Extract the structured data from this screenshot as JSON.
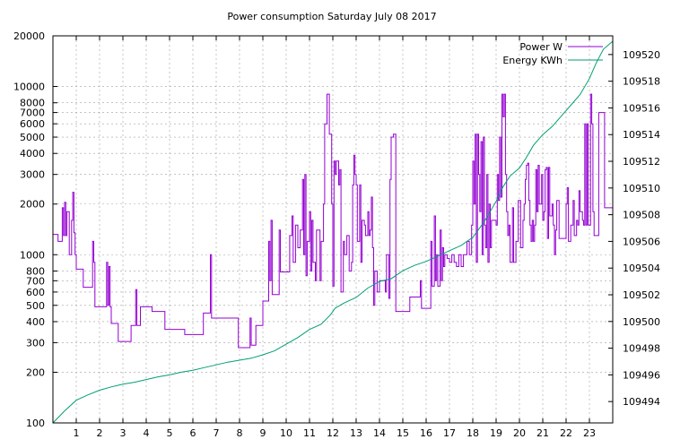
{
  "chart_data": {
    "type": "line",
    "title": "Power consumption Saturday July 08 2017",
    "xlabel": "",
    "ylabel": "",
    "y2label": "",
    "x_ticks": [
      "1",
      "2",
      "3",
      "4",
      "5",
      "6",
      "7",
      "8",
      "9",
      "10",
      "11",
      "12",
      "13",
      "14",
      "15",
      "16",
      "17",
      "18",
      "19",
      "20",
      "21",
      "22",
      "23"
    ],
    "xlim": [
      0,
      24
    ],
    "y_scale": "log",
    "ylim": [
      100,
      20000
    ],
    "y_ticks": [
      100,
      200,
      300,
      400,
      500,
      600,
      700,
      800,
      1000,
      2000,
      3000,
      4000,
      5000,
      6000,
      7000,
      8000,
      10000,
      20000
    ],
    "y2lim": [
      109492.4,
      109521.4
    ],
    "y2_ticks": [
      109494,
      109496,
      109498,
      109500,
      109502,
      109504,
      109506,
      109508,
      109510,
      109512,
      109514,
      109516,
      109518,
      109520
    ],
    "grid": true,
    "legend_position": "top-right",
    "series": [
      {
        "name": "Power W",
        "axis": "left",
        "color": "#9400d3",
        "points": [
          [
            0,
            1320
          ],
          [
            0.2,
            1320
          ],
          [
            0.22,
            1200
          ],
          [
            0.35,
            1200
          ],
          [
            0.4,
            1900
          ],
          [
            0.45,
            1300
          ],
          [
            0.5,
            2050
          ],
          [
            0.55,
            1300
          ],
          [
            0.6,
            1800
          ],
          [
            0.7,
            1000
          ],
          [
            0.8,
            1600
          ],
          [
            0.85,
            2350
          ],
          [
            0.9,
            1350
          ],
          [
            0.95,
            1000
          ],
          [
            1.0,
            820
          ],
          [
            1.25,
            820
          ],
          [
            1.3,
            640
          ],
          [
            1.65,
            640
          ],
          [
            1.7,
            1200
          ],
          [
            1.75,
            900
          ],
          [
            1.8,
            490
          ],
          [
            2.25,
            490
          ],
          [
            2.3,
            900
          ],
          [
            2.35,
            500
          ],
          [
            2.4,
            850
          ],
          [
            2.45,
            490
          ],
          [
            2.5,
            390
          ],
          [
            2.75,
            390
          ],
          [
            2.8,
            305
          ],
          [
            3.3,
            305
          ],
          [
            3.35,
            380
          ],
          [
            3.5,
            380
          ],
          [
            3.55,
            620
          ],
          [
            3.6,
            380
          ],
          [
            3.75,
            490
          ],
          [
            4.2,
            490
          ],
          [
            4.25,
            460
          ],
          [
            4.75,
            460
          ],
          [
            4.8,
            360
          ],
          [
            5.6,
            360
          ],
          [
            5.65,
            335
          ],
          [
            6.4,
            335
          ],
          [
            6.45,
            450
          ],
          [
            6.7,
            450
          ],
          [
            6.75,
            1000
          ],
          [
            6.8,
            420
          ],
          [
            7.9,
            420
          ],
          [
            7.95,
            280
          ],
          [
            8.4,
            280
          ],
          [
            8.45,
            420
          ],
          [
            8.5,
            290
          ],
          [
            8.6,
            290
          ],
          [
            8.7,
            380
          ],
          [
            8.95,
            380
          ],
          [
            9.0,
            530
          ],
          [
            9.15,
            530
          ],
          [
            9.25,
            1200
          ],
          [
            9.3,
            700
          ],
          [
            9.35,
            1600
          ],
          [
            9.4,
            580
          ],
          [
            9.6,
            580
          ],
          [
            9.7,
            1400
          ],
          [
            9.75,
            790
          ],
          [
            10.1,
            790
          ],
          [
            10.15,
            1300
          ],
          [
            10.25,
            1700
          ],
          [
            10.3,
            900
          ],
          [
            10.4,
            1500
          ],
          [
            10.5,
            1100
          ],
          [
            10.6,
            1400
          ],
          [
            10.7,
            2800
          ],
          [
            10.75,
            1000
          ],
          [
            10.8,
            3000
          ],
          [
            10.85,
            750
          ],
          [
            10.9,
            1200
          ],
          [
            11.0,
            1800
          ],
          [
            11.05,
            800
          ],
          [
            11.1,
            1600
          ],
          [
            11.15,
            900
          ],
          [
            11.25,
            700
          ],
          [
            11.3,
            1400
          ],
          [
            11.45,
            700
          ],
          [
            11.5,
            1200
          ],
          [
            11.6,
            2000
          ],
          [
            11.65,
            6000
          ],
          [
            11.75,
            9000
          ],
          [
            11.85,
            5200
          ],
          [
            11.95,
            2000
          ],
          [
            12.0,
            650
          ],
          [
            12.05,
            3600
          ],
          [
            12.1,
            3000
          ],
          [
            12.15,
            3600
          ],
          [
            12.25,
            2600
          ],
          [
            12.3,
            3200
          ],
          [
            12.35,
            600
          ],
          [
            12.4,
            600
          ],
          [
            12.45,
            1200
          ],
          [
            12.5,
            1000
          ],
          [
            12.6,
            1300
          ],
          [
            12.7,
            800
          ],
          [
            12.8,
            900
          ],
          [
            12.85,
            2600
          ],
          [
            12.9,
            3900
          ],
          [
            12.95,
            3000
          ],
          [
            13.0,
            2600
          ],
          [
            13.05,
            1200
          ],
          [
            13.15,
            2600
          ],
          [
            13.2,
            900
          ],
          [
            13.25,
            1600
          ],
          [
            13.35,
            1500
          ],
          [
            13.4,
            1300
          ],
          [
            13.5,
            1800
          ],
          [
            13.55,
            1300
          ],
          [
            13.6,
            1400
          ],
          [
            13.65,
            2200
          ],
          [
            13.7,
            1100
          ],
          [
            13.75,
            500
          ],
          [
            13.8,
            800
          ],
          [
            13.9,
            600
          ],
          [
            14.0,
            700
          ],
          [
            14.15,
            700
          ],
          [
            14.25,
            600
          ],
          [
            14.3,
            1000
          ],
          [
            14.4,
            550
          ],
          [
            14.45,
            2800
          ],
          [
            14.5,
            5000
          ],
          [
            14.6,
            5200
          ],
          [
            14.7,
            460
          ],
          [
            15.2,
            460
          ],
          [
            15.3,
            560
          ],
          [
            15.7,
            560
          ],
          [
            15.75,
            700
          ],
          [
            15.8,
            480
          ],
          [
            16.1,
            480
          ],
          [
            16.2,
            1200
          ],
          [
            16.25,
            650
          ],
          [
            16.35,
            1700
          ],
          [
            16.4,
            700
          ],
          [
            16.45,
            1000
          ],
          [
            16.5,
            650
          ],
          [
            16.6,
            1400
          ],
          [
            16.65,
            700
          ],
          [
            16.7,
            1100
          ],
          [
            16.75,
            850
          ],
          [
            16.8,
            1000
          ],
          [
            16.9,
            950
          ],
          [
            17.0,
            900
          ],
          [
            17.1,
            1000
          ],
          [
            17.2,
            900
          ],
          [
            17.3,
            850
          ],
          [
            17.4,
            1000
          ],
          [
            17.5,
            850
          ],
          [
            17.6,
            1000
          ],
          [
            17.75,
            1200
          ],
          [
            17.85,
            1000
          ],
          [
            17.95,
            1500
          ],
          [
            18.0,
            3600
          ],
          [
            18.05,
            2000
          ],
          [
            18.1,
            5200
          ],
          [
            18.15,
            900
          ],
          [
            18.2,
            5200
          ],
          [
            18.25,
            3000
          ],
          [
            18.3,
            1800
          ],
          [
            18.35,
            4700
          ],
          [
            18.4,
            1000
          ],
          [
            18.45,
            5000
          ],
          [
            18.5,
            1500
          ],
          [
            18.55,
            1100
          ],
          [
            18.6,
            3000
          ],
          [
            18.65,
            900
          ],
          [
            18.7,
            2000
          ],
          [
            18.75,
            1100
          ],
          [
            18.8,
            1600
          ],
          [
            19.0,
            1500
          ],
          [
            19.05,
            3000
          ],
          [
            19.1,
            2100
          ],
          [
            19.15,
            5000
          ],
          [
            19.2,
            2200
          ],
          [
            19.25,
            9000
          ],
          [
            19.3,
            6600
          ],
          [
            19.35,
            9000
          ],
          [
            19.4,
            3000
          ],
          [
            19.45,
            1800
          ],
          [
            19.5,
            1300
          ],
          [
            19.55,
            1500
          ],
          [
            19.6,
            900
          ],
          [
            19.7,
            1900
          ],
          [
            19.75,
            900
          ],
          [
            19.85,
            1200
          ],
          [
            19.95,
            2100
          ],
          [
            20.05,
            1100
          ],
          [
            20.15,
            1600
          ],
          [
            20.2,
            2000
          ],
          [
            20.25,
            2800
          ],
          [
            20.3,
            3400
          ],
          [
            20.35,
            3500
          ],
          [
            20.4,
            2100
          ],
          [
            20.45,
            1500
          ],
          [
            20.5,
            1200
          ],
          [
            20.55,
            1600
          ],
          [
            20.6,
            1200
          ],
          [
            20.65,
            1500
          ],
          [
            20.7,
            3200
          ],
          [
            20.75,
            1800
          ],
          [
            20.8,
            3400
          ],
          [
            20.85,
            2000
          ],
          [
            20.95,
            3000
          ],
          [
            21.0,
            1600
          ],
          [
            21.05,
            1800
          ],
          [
            21.1,
            3200
          ],
          [
            21.15,
            3300
          ],
          [
            21.2,
            1250
          ],
          [
            21.25,
            3300
          ],
          [
            21.3,
            1700
          ],
          [
            21.4,
            2000
          ],
          [
            21.45,
            1500
          ],
          [
            21.5,
            1000
          ],
          [
            21.55,
            1400
          ],
          [
            21.6,
            2100
          ],
          [
            21.7,
            1250
          ],
          [
            21.9,
            1250
          ],
          [
            22.0,
            2000
          ],
          [
            22.05,
            2500
          ],
          [
            22.1,
            1200
          ],
          [
            22.2,
            1500
          ],
          [
            22.3,
            2100
          ],
          [
            22.35,
            1300
          ],
          [
            22.45,
            1600
          ],
          [
            22.5,
            1500
          ],
          [
            22.55,
            2400
          ],
          [
            22.6,
            1800
          ],
          [
            22.7,
            1600
          ],
          [
            22.75,
            1500
          ],
          [
            22.8,
            6000
          ],
          [
            22.85,
            1500
          ],
          [
            22.9,
            6000
          ],
          [
            22.95,
            1500
          ],
          [
            23.05,
            9000
          ],
          [
            23.1,
            6000
          ],
          [
            23.15,
            1800
          ],
          [
            23.2,
            1300
          ],
          [
            23.35,
            1300
          ],
          [
            23.4,
            7000
          ],
          [
            23.6,
            7000
          ],
          [
            23.65,
            1900
          ],
          [
            24,
            1900
          ]
        ]
      },
      {
        "name": "Energy KWh",
        "axis": "right",
        "color": "#009e73",
        "points": [
          [
            0,
            109492.4
          ],
          [
            0.5,
            109493.3
          ],
          [
            1,
            109494.1
          ],
          [
            1.5,
            109494.5
          ],
          [
            2,
            109494.85
          ],
          [
            2.5,
            109495.1
          ],
          [
            3,
            109495.3
          ],
          [
            3.5,
            109495.45
          ],
          [
            4,
            109495.65
          ],
          [
            4.5,
            109495.85
          ],
          [
            5,
            109496.0
          ],
          [
            5.5,
            109496.2
          ],
          [
            6,
            109496.35
          ],
          [
            6.5,
            109496.55
          ],
          [
            7,
            109496.75
          ],
          [
            7.5,
            109496.95
          ],
          [
            8,
            109497.1
          ],
          [
            8.5,
            109497.25
          ],
          [
            9,
            109497.5
          ],
          [
            9.5,
            109497.8
          ],
          [
            10,
            109498.3
          ],
          [
            10.5,
            109498.8
          ],
          [
            11,
            109499.4
          ],
          [
            11.5,
            109499.8
          ],
          [
            11.9,
            109500.5
          ],
          [
            12.1,
            109501.0
          ],
          [
            12.5,
            109501.4
          ],
          [
            13,
            109501.8
          ],
          [
            13.5,
            109502.5
          ],
          [
            14,
            109503.0
          ],
          [
            14.5,
            109503.2
          ],
          [
            15,
            109503.8
          ],
          [
            15.5,
            109504.2
          ],
          [
            16,
            109504.5
          ],
          [
            16.5,
            109504.9
          ],
          [
            17,
            109505.3
          ],
          [
            17.5,
            109505.7
          ],
          [
            18,
            109506.3
          ],
          [
            18.5,
            109507.5
          ],
          [
            19,
            109509.0
          ],
          [
            19.3,
            109510.1
          ],
          [
            19.6,
            109510.9
          ],
          [
            20,
            109511.5
          ],
          [
            20.3,
            109512.3
          ],
          [
            20.6,
            109513.2
          ],
          [
            21,
            109514.0
          ],
          [
            21.4,
            109514.6
          ],
          [
            21.8,
            109515.4
          ],
          [
            22.2,
            109516.2
          ],
          [
            22.6,
            109517.0
          ],
          [
            23,
            109518.2
          ],
          [
            23.3,
            109519.4
          ],
          [
            23.6,
            109520.4
          ],
          [
            24,
            109521.0
          ]
        ]
      }
    ]
  }
}
